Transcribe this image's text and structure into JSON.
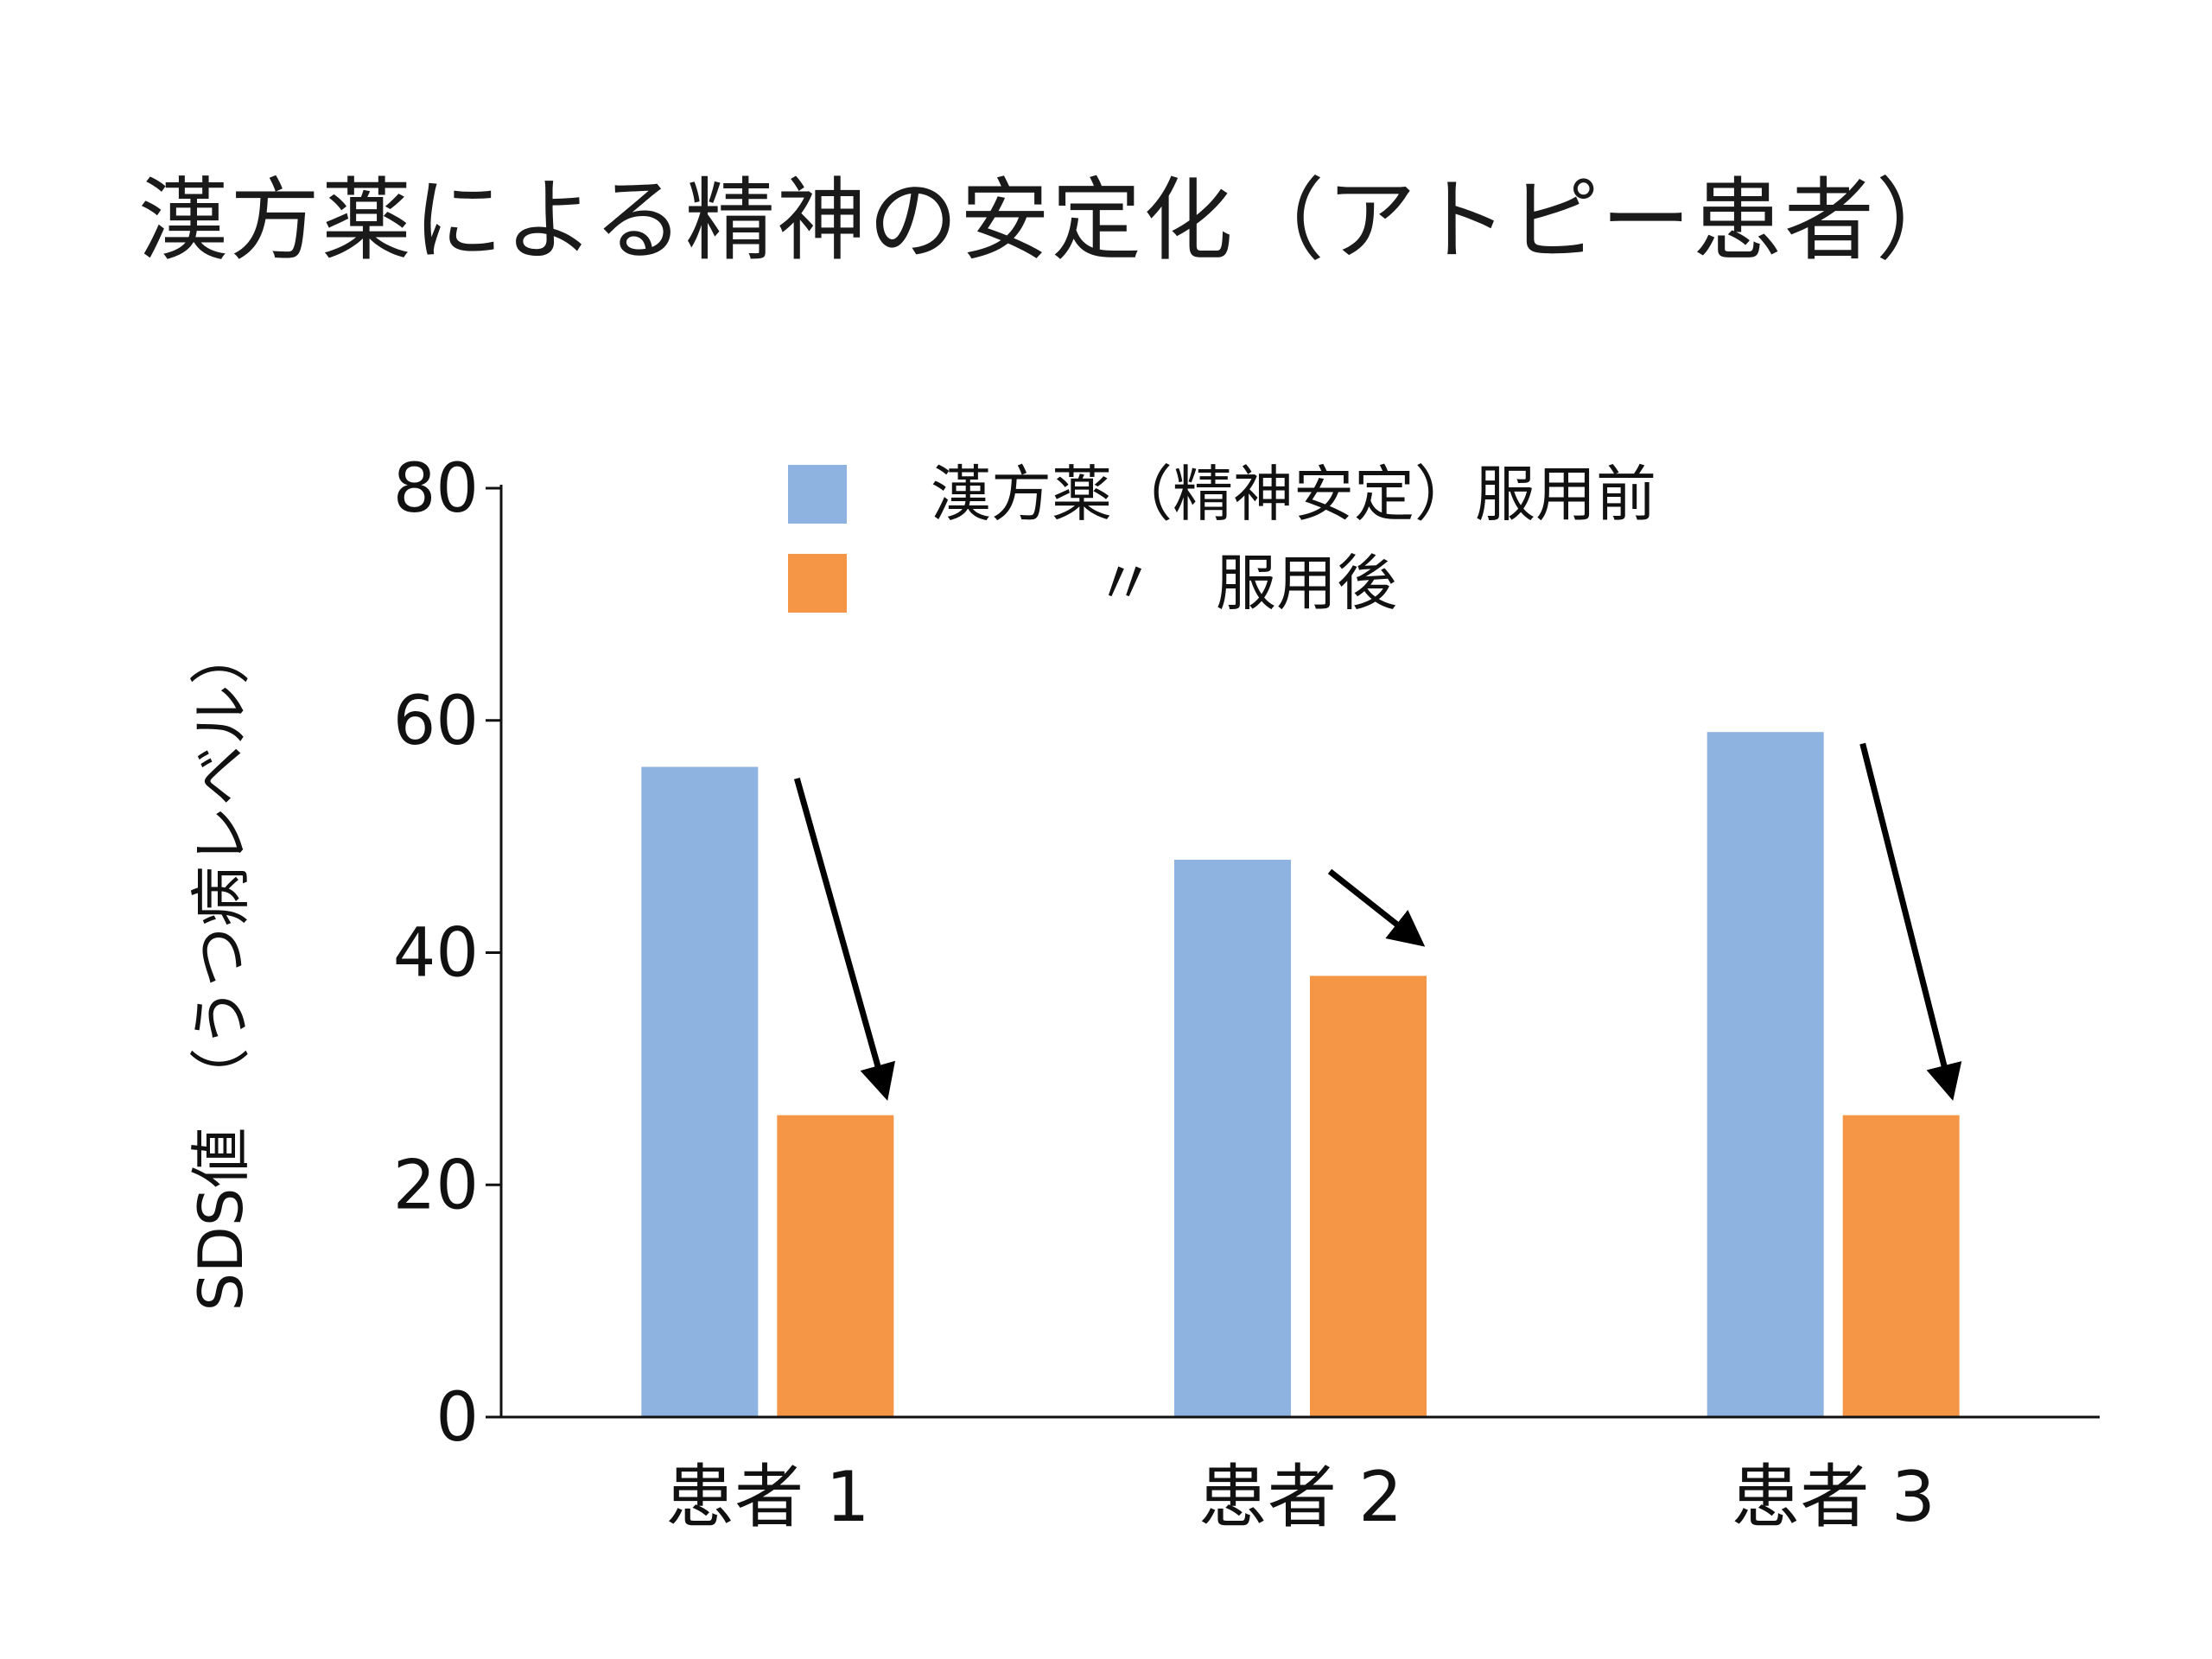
{
  "slide": {
    "title": "漢方薬による精神の安定化（アトピー患者）"
  },
  "chart_data": {
    "type": "bar",
    "categories": [
      "患者 1",
      "患者 2",
      "患者 3"
    ],
    "series": [
      {
        "name": "漢方薬（精神安定）服用前",
        "color": "#8fb3e0",
        "values": [
          56,
          48,
          59
        ]
      },
      {
        "name": "〃　服用後",
        "color": "#f59646",
        "values": [
          26,
          38,
          26
        ]
      }
    ],
    "ylabel": "SDS値 （うつ病レベル）",
    "xlabel": "",
    "ylim": [
      0,
      80
    ],
    "yticks": [
      0,
      20,
      40,
      60,
      80
    ],
    "grid": false,
    "legend_position": "top",
    "annotations": [
      {
        "type": "arrow",
        "category": "患者 1",
        "from_value": 55,
        "to_value": 28
      },
      {
        "type": "arrow",
        "category": "患者 2",
        "from_value": 47,
        "to_value": 41
      },
      {
        "type": "arrow",
        "category": "患者 3",
        "from_value": 58,
        "to_value": 28
      }
    ]
  }
}
